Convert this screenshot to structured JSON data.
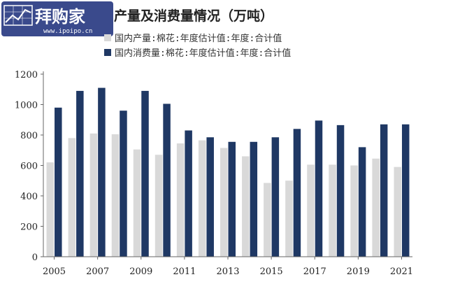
{
  "watermark": {
    "brand": "拜购家",
    "site": "www.ipoipo.cn",
    "bg_color": "#3a4a8c"
  },
  "chart_data": {
    "type": "bar",
    "title": "产量及消费量情况（万吨）",
    "x": [
      2005,
      2006,
      2007,
      2008,
      2009,
      2010,
      2011,
      2012,
      2013,
      2014,
      2015,
      2016,
      2017,
      2018,
      2019,
      2020,
      2021
    ],
    "x_tick_labels": [
      "2005",
      "2007",
      "2009",
      "2011",
      "2013",
      "2015",
      "2017",
      "2019",
      "2021"
    ],
    "y_tick_labels": [
      "0",
      "200",
      "400",
      "600",
      "800",
      "1000",
      "1200"
    ],
    "ylim": [
      0,
      1200
    ],
    "legend_position": "top-left",
    "grid": false,
    "series": [
      {
        "name": "国内产量:棉花:年度估计值:年度:合计值",
        "color": "#d9d9d9",
        "values": [
          620,
          780,
          810,
          805,
          705,
          670,
          745,
          765,
          715,
          660,
          485,
          500,
          605,
          605,
          600,
          645,
          590
        ]
      },
      {
        "name": "国内消费量:棉花:年度估计值:年度:合计值",
        "color": "#1f3864",
        "values": [
          980,
          1090,
          1110,
          960,
          1090,
          1005,
          830,
          785,
          755,
          755,
          785,
          840,
          895,
          865,
          720,
          870,
          870
        ]
      }
    ]
  }
}
